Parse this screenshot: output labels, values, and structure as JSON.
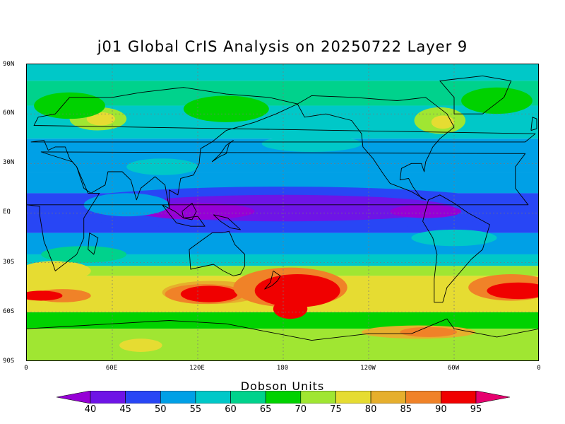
{
  "title": "j01 Global CrIS Analysis on 20250722 Layer 9",
  "colorbar": {
    "title": "Dobson Units",
    "levels": [
      "40",
      "45",
      "50",
      "55",
      "60",
      "65",
      "70",
      "75",
      "80",
      "85",
      "90",
      "95"
    ],
    "colors": [
      "#9600d6",
      "#6e14e6",
      "#2846f5",
      "#00a0e6",
      "#00c8c8",
      "#00d28c",
      "#00d200",
      "#a0e632",
      "#e6dc32",
      "#e6af2d",
      "#f08228",
      "#f00000",
      "#e6006e"
    ]
  },
  "axes": {
    "lat_labels": [
      "90N",
      "60N",
      "30N",
      "EQ",
      "30S",
      "60S",
      "90S"
    ],
    "lon_labels": [
      "0",
      "60E",
      "120E",
      "180",
      "120W",
      "60W",
      "0"
    ]
  }
}
